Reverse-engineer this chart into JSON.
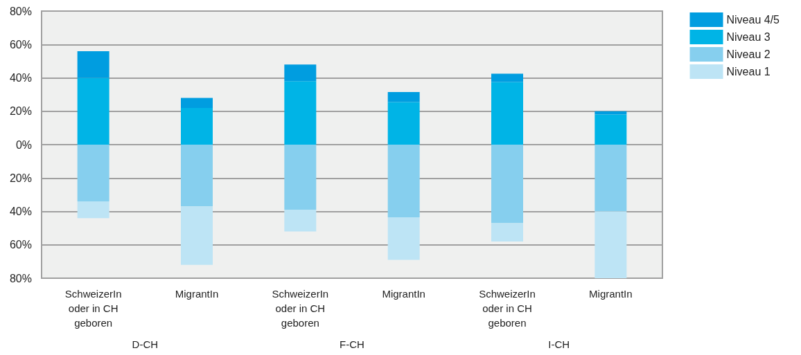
{
  "chart_data": {
    "type": "bar",
    "stacked": true,
    "categories": [
      "SchweizerIn\noder in CH\ngeboren",
      "MigrantIn",
      "SchweizerIn\noder in CH\ngeboren",
      "MigrantIn",
      "SchweizerIn\noder in CH\ngeboren",
      "MigrantIn"
    ],
    "annotations": [
      "D-CH",
      "F-CH",
      "I-CH"
    ],
    "series": [
      {
        "name": "Niveau 3",
        "color": "#00b4e6",
        "values": [
          40,
          22,
          38,
          25.5,
          37.5,
          18
        ]
      },
      {
        "name": "Niveau 4/5",
        "color": "#009de0",
        "values": [
          16,
          6,
          10,
          6,
          5,
          2
        ]
      },
      {
        "name": "Niveau 2",
        "color": "#86cfee",
        "values": [
          -34,
          -37,
          -39,
          -43.5,
          -47,
          -40
        ]
      },
      {
        "name": "Niveau 1",
        "color": "#bde4f5",
        "values": [
          -10,
          -35,
          -13,
          -25.5,
          -11,
          -40
        ]
      }
    ],
    "ylim": [
      -80,
      80
    ],
    "yticks": [
      {
        "value": -80,
        "label": "80%"
      },
      {
        "value": -60,
        "label": "60%"
      },
      {
        "value": -40,
        "label": "40%"
      },
      {
        "value": -20,
        "label": "20%"
      },
      {
        "value": 0,
        "label": "0%"
      },
      {
        "value": 20,
        "label": "20%"
      },
      {
        "value": 40,
        "label": "40%"
      },
      {
        "value": 60,
        "label": "60%"
      },
      {
        "value": 80,
        "label": "80%"
      }
    ],
    "grid": "y",
    "legend": "top right"
  }
}
